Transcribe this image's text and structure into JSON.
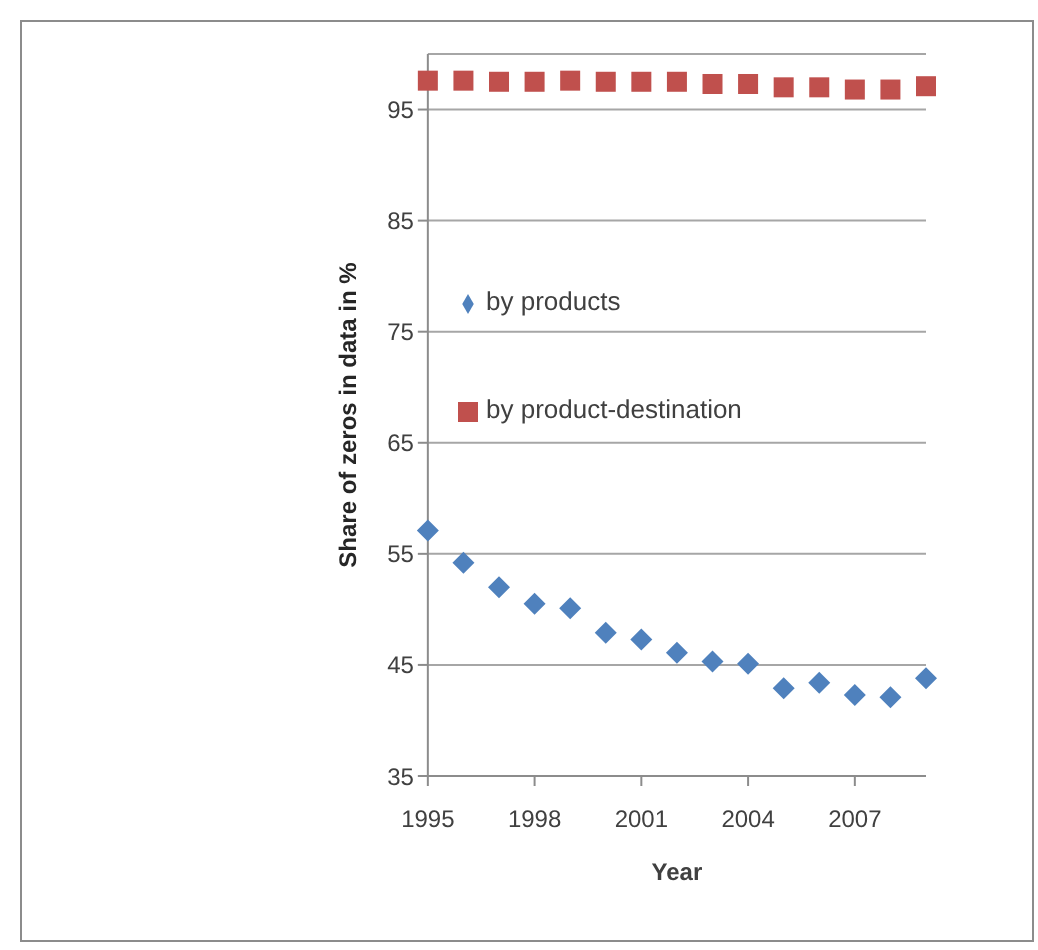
{
  "chart_data": {
    "type": "scatter",
    "xlabel": "Year",
    "ylabel": "Share of zeros in data in %",
    "x": [
      1995,
      1996,
      1997,
      1998,
      1999,
      2000,
      2001,
      2002,
      2003,
      2004,
      2005,
      2006,
      2007,
      2008,
      2009
    ],
    "series": [
      {
        "name": "by products",
        "color": "#4f81bd",
        "marker": "diamond",
        "values": [
          57.1,
          54.2,
          52.0,
          50.5,
          50.1,
          47.9,
          47.3,
          46.1,
          45.3,
          45.1,
          42.9,
          43.4,
          42.3,
          42.1,
          43.8
        ]
      },
      {
        "name": "by product-destination",
        "color": "#c0504d",
        "marker": "square",
        "values": [
          97.6,
          97.6,
          97.5,
          97.5,
          97.6,
          97.5,
          97.5,
          97.5,
          97.3,
          97.3,
          97.0,
          97.0,
          96.8,
          96.8,
          97.1
        ]
      }
    ],
    "xlim": [
      1995,
      2009
    ],
    "xticks": [
      1995,
      1998,
      2001,
      2004,
      2007
    ],
    "ylim": [
      35,
      100
    ],
    "yticks": [
      35,
      45,
      55,
      65,
      75,
      85,
      95
    ],
    "grid": "y",
    "legend": "center"
  }
}
